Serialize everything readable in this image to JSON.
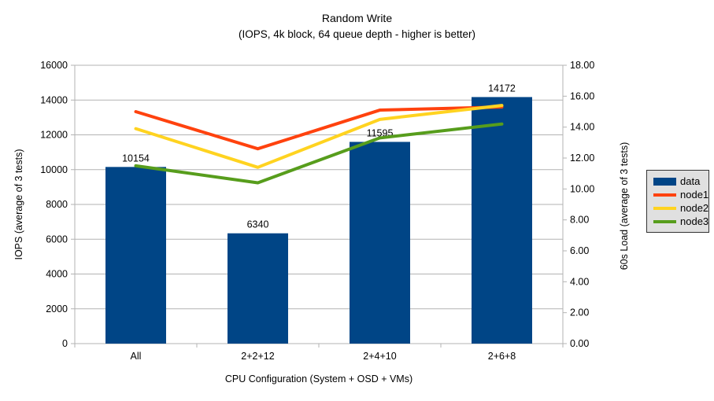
{
  "chart_data": {
    "type": "bar+line",
    "title": "Random Write",
    "subtitle": "(IOPS, 4k block, 64 queue depth - higher is better)",
    "categories": [
      "All",
      "2+2+12",
      "2+4+10",
      "2+6+8"
    ],
    "bar_series": {
      "name": "data",
      "color": "#004586",
      "axis": "left",
      "values": [
        10154,
        6340,
        11595,
        14172
      ],
      "data_labels": [
        "10154",
        "6340",
        "11595",
        "14172"
      ]
    },
    "line_series": [
      {
        "name": "node1",
        "color": "#ff420e",
        "axis": "right",
        "values": [
          15.0,
          12.6,
          15.1,
          15.3
        ]
      },
      {
        "name": "node2",
        "color": "#ffd320",
        "axis": "right",
        "values": [
          13.9,
          11.4,
          14.5,
          15.4
        ]
      },
      {
        "name": "node3",
        "color": "#579d1c",
        "axis": "right",
        "values": [
          11.5,
          10.4,
          13.3,
          14.2
        ]
      }
    ],
    "left_axis": {
      "label": "IOPS (average of 3 tests)",
      "min": 0,
      "max": 16000,
      "step": 2000,
      "tick_labels": [
        "0",
        "2000",
        "4000",
        "6000",
        "8000",
        "10000",
        "12000",
        "14000",
        "16000"
      ]
    },
    "right_axis": {
      "label": "60s Load (average of 3 tests)",
      "min": 0,
      "max": 18,
      "step": 2,
      "tick_labels": [
        "0.00",
        "2.00",
        "4.00",
        "6.00",
        "8.00",
        "10.00",
        "12.00",
        "14.00",
        "16.00",
        "18.00"
      ]
    },
    "x_axis": {
      "label": "CPU Configuration (System + OSD + VMs)"
    },
    "legend": {
      "position": "right"
    },
    "grid": "horizontal",
    "colors": {
      "gridline": "#b3b3b3",
      "axis": "#b3b3b3",
      "text": "#000000",
      "legend_bg": "#e0e0e0"
    }
  }
}
